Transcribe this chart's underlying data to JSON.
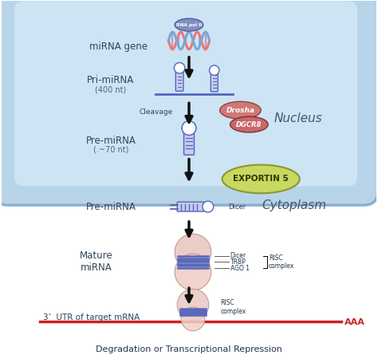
{
  "title": "Degradation or Transcriptional Repression",
  "background_color": "#ffffff",
  "nucleus_label": "Nucleus",
  "cytoplasm_label": "Cytoplasm",
  "steps": [
    {
      "label": "miRNA gene",
      "sublabel": ""
    },
    {
      "label": "Pri-miRNA",
      "sublabel": "(400 nt)"
    },
    {
      "label": "Pre-miRNA",
      "sublabel": "(.~70 nt)"
    },
    {
      "label": "Pre-miRNA",
      "sublabel": ""
    },
    {
      "label": "Mature\nmiRNA",
      "sublabel": ""
    },
    {
      "label": "3’  UTR of target mRNA",
      "sublabel": ""
    }
  ],
  "rna_pol_label": "RNA pol II",
  "cleavage_label": "Cleavage",
  "drosha_label": "Drosha",
  "dgcr8_label": "DGCR8",
  "exportin_label": "EXPORTIN 5",
  "dicer_label": "Dicer",
  "risc_labels": [
    "Dicer",
    "TRBP",
    "AGO 1"
  ],
  "risc_complex_label": "RISC\ncomplex",
  "risc_complex2_label": "RISC\ncomplex",
  "aaa_label": "AAA",
  "stem_color": "#5566bb",
  "loop_color": "#5566bb",
  "stem_fill": "#c8ccee",
  "risc_top_color": "#e8c8c0",
  "risc_bot_color": "#f0d0c8",
  "mature_stripe_color": "#5566bb",
  "nucleus_outer": "#aac8e0",
  "nucleus_inner": "#c8e0f0",
  "nucleus_bg": "#d8ecf8",
  "exportin_color": "#c8d860",
  "drosha_color": "#d07878",
  "dgcr8_color": "#c86868"
}
